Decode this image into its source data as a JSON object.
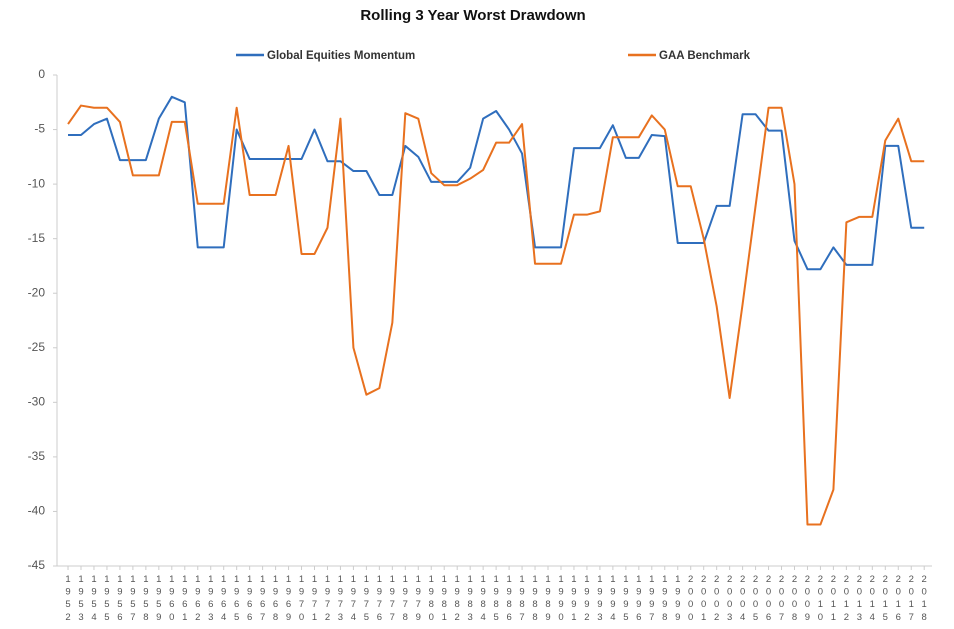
{
  "chart_data": {
    "type": "line",
    "title": "Rolling 3 Year Worst Drawdown",
    "x": [
      1952,
      1953,
      1954,
      1955,
      1956,
      1957,
      1958,
      1959,
      1960,
      1961,
      1962,
      1963,
      1964,
      1965,
      1966,
      1967,
      1968,
      1969,
      1970,
      1971,
      1972,
      1973,
      1974,
      1975,
      1976,
      1977,
      1978,
      1979,
      1980,
      1981,
      1982,
      1983,
      1984,
      1985,
      1986,
      1987,
      1988,
      1989,
      1990,
      1991,
      1992,
      1993,
      1994,
      1995,
      1996,
      1997,
      1998,
      1999,
      2000,
      2001,
      2002,
      2003,
      2004,
      2005,
      2006,
      2007,
      2008,
      2009,
      2010,
      2011,
      2012,
      2013,
      2014,
      2015,
      2016,
      2017,
      2018
    ],
    "series": [
      {
        "name": "Global Equities Momentum",
        "color": "#2f6ebd",
        "values": [
          -5.5,
          -5.5,
          -4.5,
          -4,
          -7.8,
          -7.8,
          -7.8,
          -4,
          -2,
          -2.5,
          -15.8,
          -15.8,
          -15.8,
          -5,
          -7.7,
          -7.7,
          -7.7,
          -7.7,
          -7.7,
          -5,
          -7.9,
          -7.9,
          -8.8,
          -8.8,
          -11,
          -11,
          -6.5,
          -7.5,
          -9.8,
          -9.8,
          -9.8,
          -8.5,
          -4,
          -3.3,
          -5,
          -7.2,
          -15.8,
          -15.8,
          -15.8,
          -6.7,
          -6.7,
          -6.7,
          -4.6,
          -7.6,
          -7.6,
          -5.5,
          -5.6,
          -15.4,
          -15.4,
          -15.4,
          -12,
          -12,
          -3.6,
          -3.6,
          -5.1,
          -5.1,
          -15.2,
          -17.8,
          -17.8,
          -15.8,
          -17.4,
          -17.4,
          -17.4,
          -6.5,
          -6.5,
          -14,
          -14
        ]
      },
      {
        "name": "GAA Benchmark",
        "color": "#e8711f",
        "values": [
          -4.5,
          -2.8,
          -3,
          -3,
          -4.3,
          -9.2,
          -9.2,
          -9.2,
          -4.3,
          -4.3,
          -11.8,
          -11.8,
          -11.8,
          -3,
          -11,
          -11,
          -11,
          -6.5,
          -16.4,
          -16.4,
          -14,
          -4,
          -25,
          -29.3,
          -28.7,
          -22.7,
          -3.5,
          -4,
          -9,
          -10.1,
          -10.1,
          -9.5,
          -8.7,
          -6.2,
          -6.2,
          -4.5,
          -17.3,
          -17.3,
          -17.3,
          -12.8,
          -12.8,
          -12.5,
          -5.7,
          -5.7,
          -5.7,
          -3.7,
          -5,
          -10.2,
          -10.2,
          -15,
          -21.2,
          -29.6,
          -21,
          -12,
          -3,
          -3,
          -10,
          -41.2,
          -41.2,
          -38,
          -13.5,
          -13,
          -13,
          -6,
          -4,
          -7.9,
          -7.9
        ]
      }
    ],
    "xlim": [
      1951.15,
      2018.6
    ],
    "xticks": [
      1952,
      1953,
      1954,
      1955,
      1956,
      1957,
      1958,
      1959,
      1960,
      1961,
      1962,
      1963,
      1964,
      1965,
      1966,
      1967,
      1968,
      1969,
      1970,
      1971,
      1972,
      1973,
      1974,
      1975,
      1976,
      1977,
      1978,
      1979,
      1980,
      1981,
      1982,
      1983,
      1984,
      1985,
      1986,
      1987,
      1988,
      1989,
      1990,
      1991,
      1992,
      1993,
      1994,
      1995,
      1996,
      1997,
      1998,
      1999,
      2000,
      2001,
      2002,
      2003,
      2004,
      2005,
      2006,
      2007,
      2008,
      2009,
      2010,
      2011,
      2012,
      2013,
      2014,
      2015,
      2016,
      2017,
      2018
    ],
    "ylim": [
      -45,
      0
    ],
    "yticks": [
      0,
      -5,
      -10,
      -15,
      -20,
      -25,
      -30,
      -35,
      -40,
      -45
    ],
    "legend": "top"
  }
}
